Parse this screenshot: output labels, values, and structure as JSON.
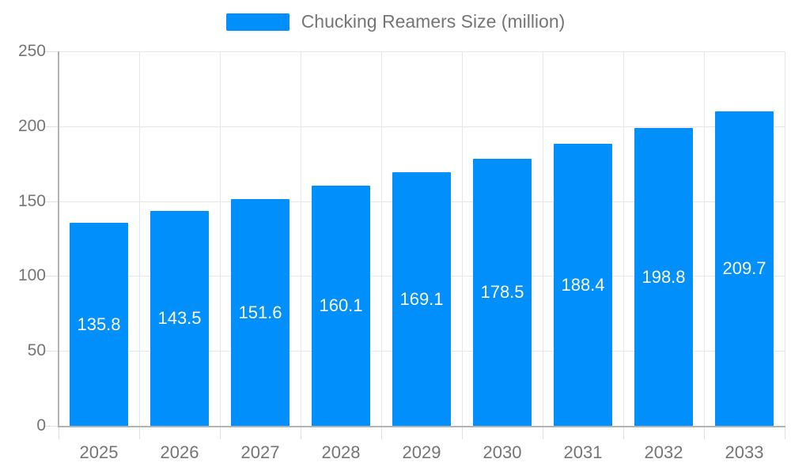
{
  "chart_data": {
    "type": "bar",
    "title": "Chucking Reamers Size (million)",
    "legend": {
      "position": "top"
    },
    "categories": [
      "2025",
      "2026",
      "2027",
      "2028",
      "2029",
      "2030",
      "2031",
      "2032",
      "2033"
    ],
    "series": [
      {
        "name": "Chucking Reamers Size (million)",
        "values": [
          135.8,
          143.5,
          151.6,
          160.1,
          169.1,
          178.5,
          188.4,
          198.8,
          209.7
        ]
      }
    ],
    "xlabel": "",
    "ylabel": "",
    "ylim": [
      0,
      250
    ],
    "yticks": [
      0,
      50,
      100,
      150,
      200,
      250
    ],
    "grid": true
  },
  "style": {
    "bar_color": "#008FFB",
    "axis_line_color": "#b3b3b3",
    "gridline_color": "#e7e7e7",
    "tick_color": "#e0e0e0",
    "axis_label_color": "#757575",
    "value_label_color": "#ffffff",
    "background_color": "#ffffff"
  }
}
